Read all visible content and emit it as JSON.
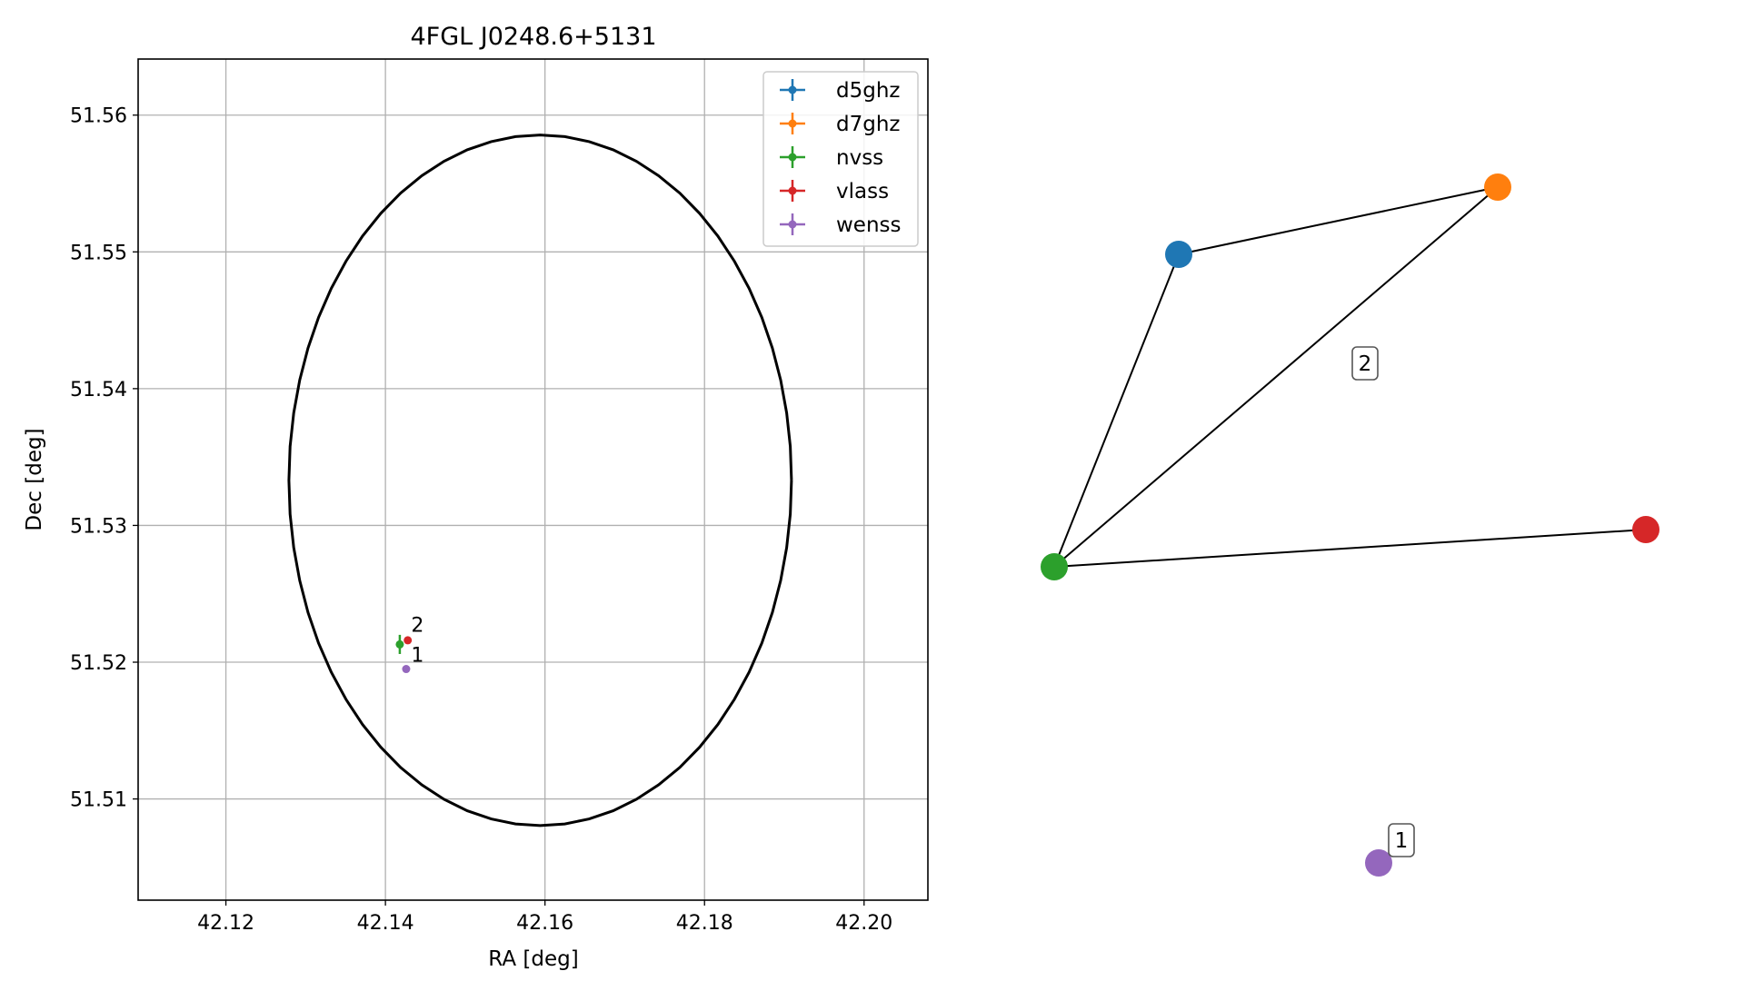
{
  "chart_data": [
    {
      "type": "scatter",
      "title": "4FGL J0248.6+5131",
      "xlabel": "RA [deg]",
      "ylabel": "Dec [deg]",
      "xlim": [
        42.109,
        42.208
      ],
      "ylim": [
        51.5026,
        51.5641
      ],
      "xticks": [
        42.12,
        42.14,
        42.16,
        42.18,
        42.2
      ],
      "xtick_labels": [
        "42.12",
        "42.14",
        "42.16",
        "42.18",
        "42.20"
      ],
      "yticks": [
        51.51,
        51.52,
        51.53,
        51.54,
        51.55,
        51.56
      ],
      "ytick_labels": [
        "51.51",
        "51.52",
        "51.53",
        "51.54",
        "51.55",
        "51.56"
      ],
      "grid": true,
      "legend_position": "top-right",
      "ellipse": {
        "center": [
          42.1594,
          51.5333
        ],
        "ra_semi_axis": 0.0315,
        "dec_semi_axis": 0.02525,
        "color": "#000000"
      },
      "series": [
        {
          "name": "d5ghz",
          "color": "#1f77b4",
          "points": []
        },
        {
          "name": "d7ghz",
          "color": "#ff7f0e",
          "points": []
        },
        {
          "name": "nvss",
          "color": "#2ca02c",
          "points": [
            {
              "x": 42.1418,
              "y": 51.5213,
              "yerr": 0.0007
            }
          ]
        },
        {
          "name": "vlass",
          "color": "#d62728",
          "points": [
            {
              "x": 42.1428,
              "y": 51.5216
            }
          ]
        },
        {
          "name": "wenss",
          "color": "#9467bd",
          "points": [
            {
              "x": 42.1426,
              "y": 51.5195
            }
          ]
        }
      ],
      "annotations": [
        {
          "text": "2",
          "x": 42.1431,
          "y": 51.5223
        },
        {
          "text": "1",
          "x": 42.1431,
          "y": 51.5201
        }
      ]
    },
    {
      "type": "network",
      "nodes": [
        {
          "id": "d5ghz",
          "color": "#1f77b4"
        },
        {
          "id": "d7ghz",
          "color": "#ff7f0e"
        },
        {
          "id": "nvss",
          "color": "#2ca02c"
        },
        {
          "id": "vlass",
          "color": "#d62728"
        },
        {
          "id": "wenss",
          "color": "#9467bd"
        }
      ],
      "edges": [
        [
          "d5ghz",
          "d7ghz"
        ],
        [
          "d5ghz",
          "nvss"
        ],
        [
          "d7ghz",
          "nvss"
        ],
        [
          "nvss",
          "vlass"
        ]
      ],
      "group_labels": [
        "2",
        "1"
      ]
    }
  ]
}
